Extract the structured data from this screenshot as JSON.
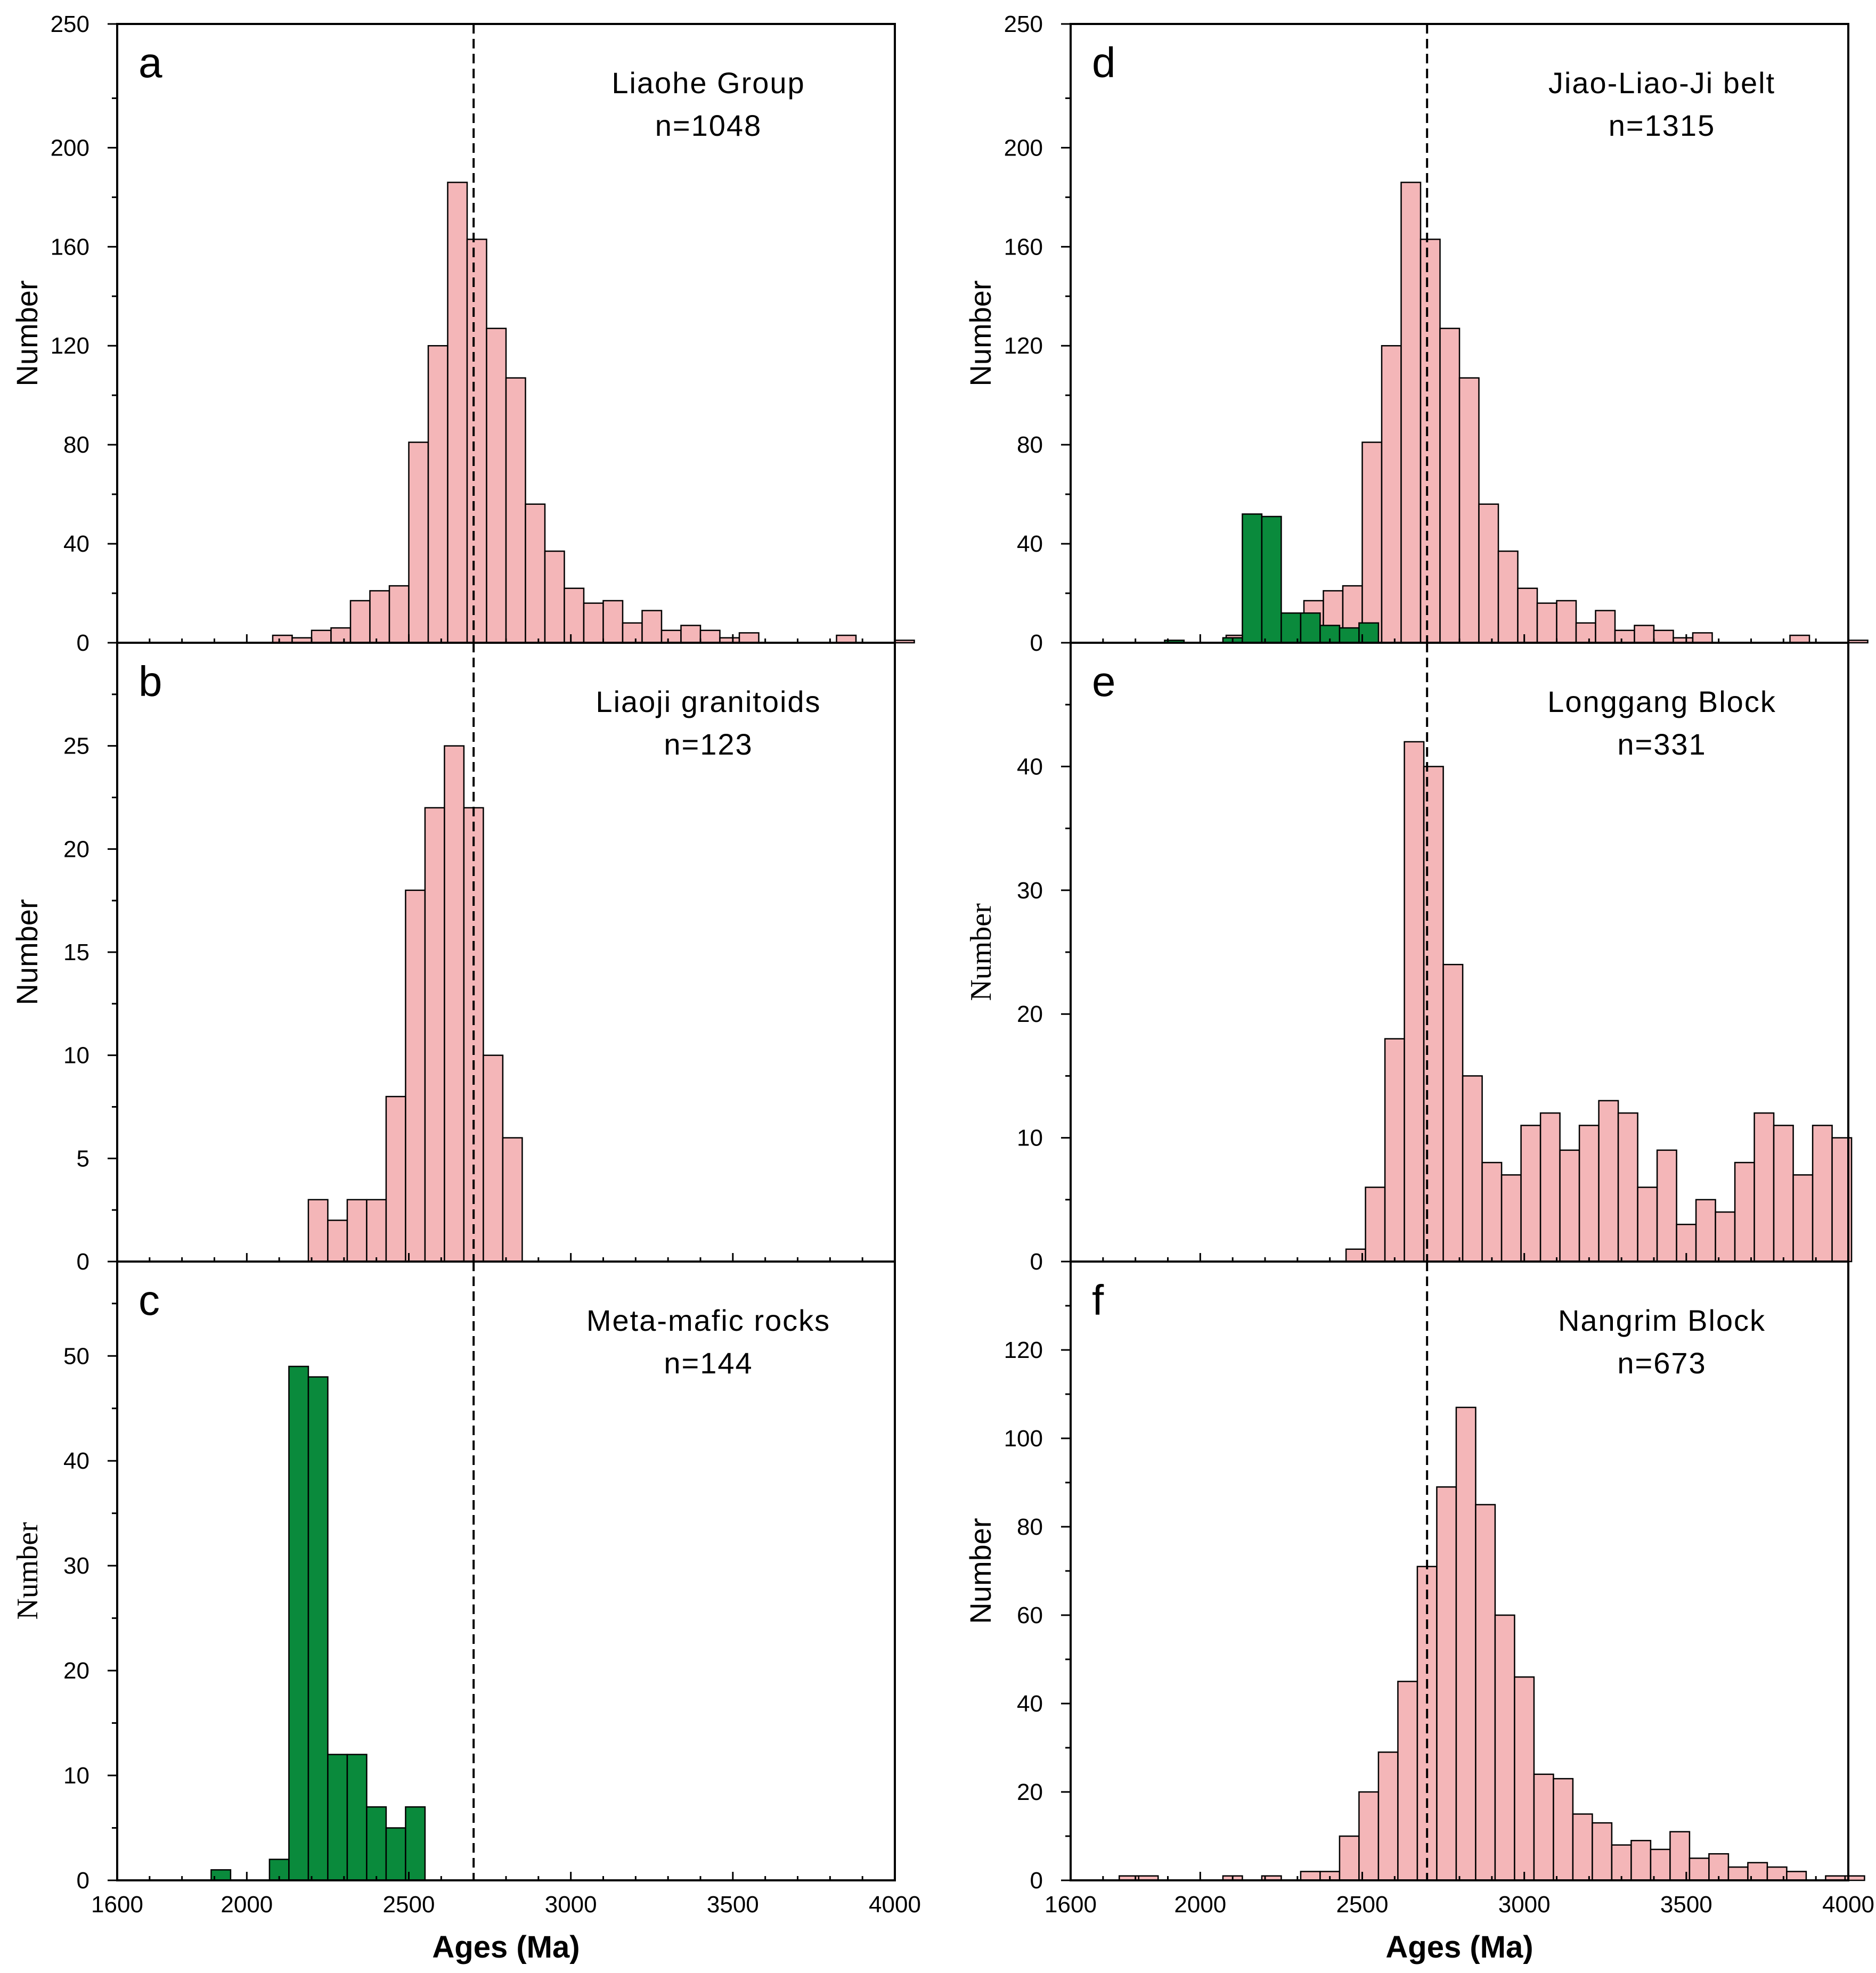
{
  "colors": {
    "pink": "#f4b6b8",
    "green": "#0a8a3c"
  },
  "x_axis": {
    "label": "Ages (Ma)",
    "ticks": [
      "1600",
      "2000",
      "2500",
      "3000",
      "3500",
      "4000"
    ],
    "tick_values": [
      1600,
      2000,
      2500,
      3000,
      3500,
      4000
    ],
    "range": [
      1600,
      4000
    ]
  },
  "reference_line_age": 2700,
  "chart_data": [
    {
      "panel": "a",
      "type": "bar",
      "title": "Liaohe Group",
      "n_label": "n=1048",
      "ylabel": "Number",
      "ylim": [
        0,
        250
      ],
      "yticks": [
        "0",
        "40",
        "80",
        "120",
        "160",
        "200",
        "250"
      ],
      "ytick_values": [
        0,
        40,
        80,
        120,
        160,
        200,
        250
      ],
      "series": [
        {
          "name": "pink",
          "bin_start": 2080,
          "bin_width": 60,
          "values": [
            3,
            2,
            5,
            6,
            17,
            21,
            23,
            81,
            120,
            186,
            163,
            127,
            107,
            56,
            37,
            22,
            16,
            17,
            8,
            13,
            5,
            7,
            5,
            2,
            4,
            0,
            0,
            0,
            0,
            3,
            0,
            0,
            1
          ]
        }
      ]
    },
    {
      "panel": "b",
      "type": "bar",
      "title": "Liaoji granitoids",
      "n_label": "n=123",
      "ylabel": "Number",
      "ylim": [
        0,
        30
      ],
      "yticks": [
        "0",
        "5",
        "10",
        "15",
        "20",
        "25"
      ],
      "ytick_values": [
        0,
        5,
        10,
        15,
        20,
        25
      ],
      "series": [
        {
          "name": "pink",
          "bin_start": 2190,
          "bin_width": 60,
          "values": [
            3,
            2,
            3,
            3,
            8,
            18,
            22,
            25,
            22,
            10,
            6
          ]
        }
      ]
    },
    {
      "panel": "c",
      "type": "bar",
      "title": "Meta-mafic rocks",
      "n_label": "n=144",
      "ylabel": "Number",
      "ylim": [
        0,
        59
      ],
      "yticks": [
        "0",
        "10",
        "20",
        "30",
        "40",
        "50"
      ],
      "ytick_values": [
        0,
        10,
        20,
        30,
        40,
        50
      ],
      "series": [
        {
          "name": "green",
          "bin_start": 1890,
          "bin_width": 60,
          "values": [
            1
          ]
        },
        {
          "name": "green",
          "bin_start": 2070,
          "bin_width": 60,
          "values": [
            2,
            49,
            48,
            12,
            12,
            7,
            5,
            7
          ]
        }
      ]
    },
    {
      "panel": "d",
      "type": "bar",
      "title": "Jiao-Liao-Ji belt",
      "n_label": "n=1315",
      "ylabel": "Number",
      "ylim": [
        0,
        250
      ],
      "yticks": [
        "0",
        "40",
        "80",
        "120",
        "160",
        "200",
        "250"
      ],
      "ytick_values": [
        0,
        40,
        80,
        120,
        160,
        200,
        250
      ],
      "series": [
        {
          "name": "pink",
          "bin_start": 2080,
          "bin_width": 60,
          "values": [
            3,
            2,
            5,
            6,
            17,
            21,
            23,
            81,
            120,
            186,
            163,
            127,
            107,
            56,
            37,
            22,
            16,
            17,
            8,
            13,
            5,
            7,
            5,
            2,
            4,
            0,
            0,
            0,
            0,
            3,
            0,
            0,
            1
          ]
        },
        {
          "name": "green",
          "bin_start": 1890,
          "bin_width": 60,
          "values": [
            1
          ]
        },
        {
          "name": "green",
          "bin_start": 2070,
          "bin_width": 60,
          "values": [
            2,
            52,
            51,
            12,
            12,
            7,
            6,
            8
          ]
        }
      ]
    },
    {
      "panel": "e",
      "type": "bar",
      "title": "Longgang Block",
      "n_label": "n=331",
      "ylabel": "Number",
      "ylim": [
        0,
        50
      ],
      "yticks": [
        "0",
        "10",
        "20",
        "30",
        "40"
      ],
      "ytick_values": [
        0,
        10,
        20,
        30,
        40
      ],
      "series": [
        {
          "name": "pink",
          "bin_start": 2450,
          "bin_width": 60,
          "values": [
            1,
            6,
            18,
            42,
            40,
            24,
            15,
            8,
            7,
            11,
            12,
            9,
            11,
            13,
            12,
            6,
            9,
            3,
            5,
            4,
            8,
            12,
            11,
            7,
            11,
            10
          ]
        }
      ]
    },
    {
      "panel": "f",
      "type": "bar",
      "title": "Nangrim Block",
      "n_label": "n=673",
      "ylabel": "Number",
      "ylim": [
        0,
        140
      ],
      "yticks": [
        "0",
        "20",
        "40",
        "60",
        "80",
        "100",
        "120"
      ],
      "ytick_values": [
        0,
        20,
        40,
        60,
        80,
        100,
        120
      ],
      "series": [
        {
          "name": "pink",
          "bin_start": 1750,
          "bin_width": 60,
          "values": [
            1,
            1
          ]
        },
        {
          "name": "pink",
          "bin_start": 2070,
          "bin_width": 60,
          "values": [
            1
          ]
        },
        {
          "name": "pink",
          "bin_start": 2190,
          "bin_width": 60,
          "values": [
            1
          ]
        },
        {
          "name": "pink",
          "bin_start": 2310,
          "bin_width": 60,
          "values": [
            2,
            2,
            10,
            20,
            29,
            45,
            71,
            89,
            107,
            85,
            60,
            46,
            24,
            23,
            15,
            13,
            8,
            9,
            7,
            11,
            5,
            6,
            3,
            4,
            3,
            2,
            0,
            1,
            1
          ]
        }
      ]
    }
  ]
}
